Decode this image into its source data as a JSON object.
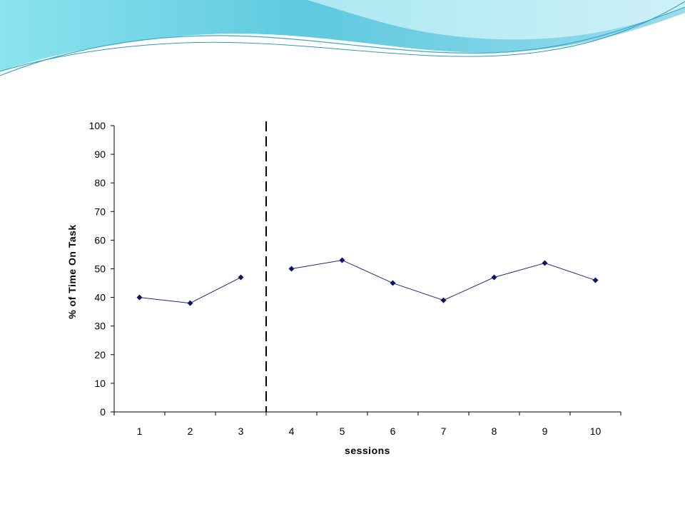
{
  "slide": {
    "banner_colors": [
      "#8fe3ee",
      "#5fcde0",
      "#3fb8d6",
      "#a8e6f0"
    ]
  },
  "chart_data": {
    "type": "line",
    "title": "",
    "xlabel": "sessions",
    "ylabel": "% of Time On Task",
    "categories": [
      "1",
      "2",
      "3",
      "4",
      "5",
      "6",
      "7",
      "8",
      "9",
      "10"
    ],
    "segments": [
      {
        "x": [
          1,
          2,
          3
        ],
        "y": [
          40,
          38,
          47
        ]
      },
      {
        "x": [
          4,
          5,
          6,
          7,
          8,
          9,
          10
        ],
        "y": [
          50,
          53,
          45,
          39,
          47,
          52,
          46
        ]
      }
    ],
    "phase_change_line": {
      "between": [
        3,
        4
      ],
      "style": "dashed"
    },
    "ylim": [
      0,
      100
    ],
    "yticks": [
      0,
      10,
      20,
      30,
      40,
      50,
      60,
      70,
      80,
      90,
      100
    ],
    "grid": false,
    "legend": "none",
    "line_color": "#1f2a7a",
    "marker_color": "#0b1466",
    "marker": "diamond"
  }
}
